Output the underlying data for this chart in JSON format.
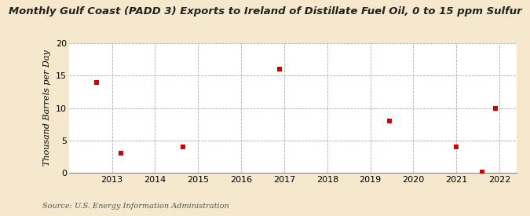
{
  "title": "Monthly Gulf Coast (PADD 3) Exports to Ireland of Distillate Fuel Oil, 0 to 15 ppm Sulfur",
  "ylabel": "Thousand Barrels per Day",
  "source": "Source: U.S. Energy Information Administration",
  "background_color": "#f5e8cc",
  "plot_background_color": "#ffffff",
  "marker_color": "#cc0000",
  "marker_style": "s",
  "marker_size": 4,
  "xlim": [
    2012.0,
    2022.4
  ],
  "ylim": [
    0,
    20
  ],
  "yticks": [
    0,
    5,
    10,
    15,
    20
  ],
  "xticks": [
    2013,
    2014,
    2015,
    2016,
    2017,
    2018,
    2019,
    2020,
    2021,
    2022
  ],
  "data_x": [
    2012.65,
    2013.2,
    2014.65,
    2016.9,
    2019.45,
    2021.0,
    2021.6,
    2021.9
  ],
  "data_y": [
    14.0,
    3.0,
    4.0,
    16.0,
    8.0,
    4.0,
    0.15,
    10.0
  ],
  "title_fontsize": 9.5,
  "label_fontsize": 8,
  "tick_fontsize": 8,
  "source_fontsize": 7
}
